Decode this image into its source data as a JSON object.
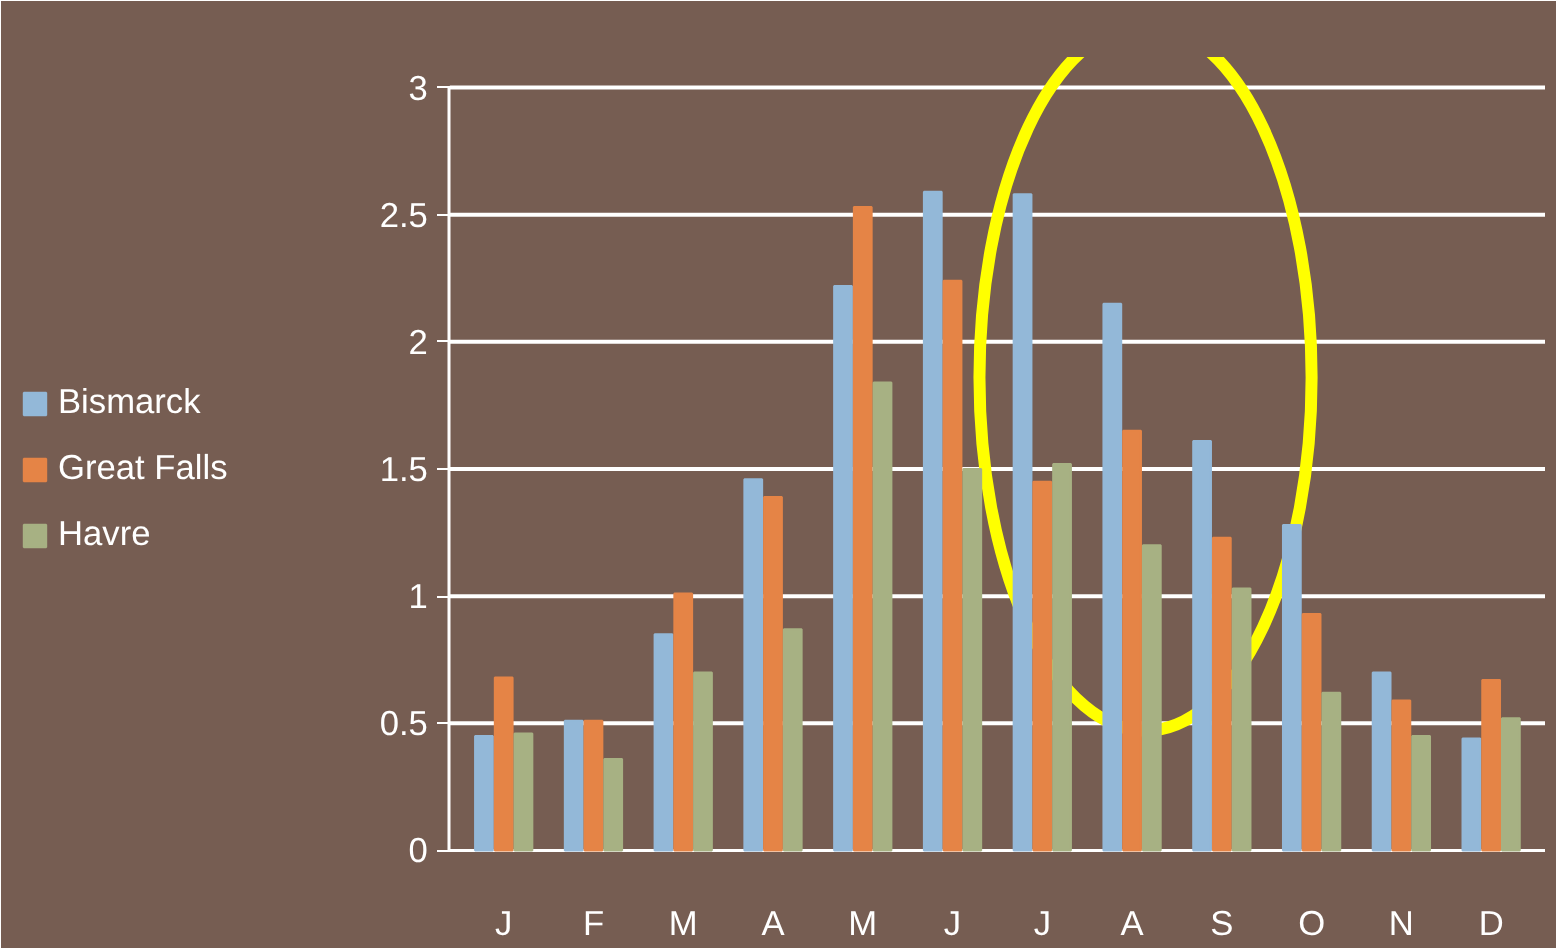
{
  "chart_data": {
    "type": "bar",
    "categories": [
      "J",
      "F",
      "M",
      "A",
      "M",
      "J",
      "J",
      "A",
      "S",
      "O",
      "N",
      "D"
    ],
    "series": [
      {
        "name": "Bismarck",
        "color": "#93b8d8",
        "values": [
          0.45,
          0.51,
          0.85,
          1.46,
          2.22,
          2.59,
          2.58,
          2.15,
          1.61,
          1.28,
          0.7,
          0.44
        ]
      },
      {
        "name": "Great Falls",
        "color": "#e58446",
        "values": [
          0.68,
          0.51,
          1.01,
          1.39,
          2.53,
          2.24,
          1.45,
          1.65,
          1.23,
          0.93,
          0.59,
          0.67
        ]
      },
      {
        "name": "Havre",
        "color": "#a7b183",
        "values": [
          0.46,
          0.36,
          0.7,
          0.87,
          1.84,
          1.5,
          1.52,
          1.2,
          1.03,
          0.62,
          0.45,
          0.52
        ]
      }
    ],
    "ylim": [
      0,
      3
    ],
    "yticks": [
      0,
      0.5,
      1,
      1.5,
      2,
      2.5,
      3
    ],
    "grid": "y",
    "legend": "left"
  }
}
